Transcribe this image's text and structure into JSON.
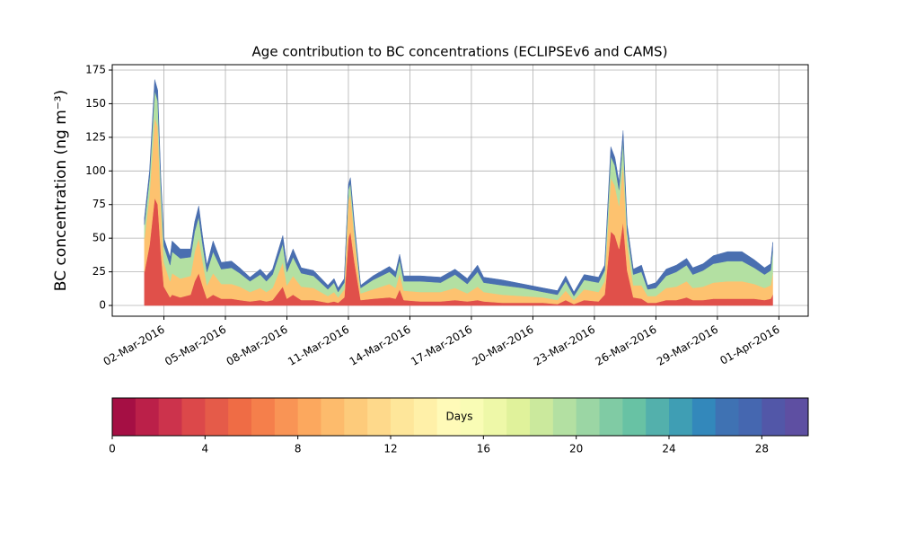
{
  "chart_data": {
    "type": "stacked-area",
    "title": "Age contribution to BC concentrations (ECLIPSEv6 and CAMS)",
    "y_label": "BC concentration (ng m⁻³)",
    "x": [
      1.05,
      1.3,
      1.55,
      1.7,
      1.85,
      2.0,
      2.3,
      2.4,
      2.8,
      3.3,
      3.5,
      3.7,
      3.9,
      4.1,
      4.4,
      4.8,
      5.3,
      5.7,
      6.2,
      6.7,
      7.0,
      7.3,
      7.8,
      8.0,
      8.3,
      8.7,
      9.3,
      10.0,
      10.3,
      10.5,
      10.8,
      11.0,
      11.1,
      11.3,
      11.6,
      12.2,
      13.0,
      13.3,
      13.5,
      13.7,
      14.5,
      15.5,
      16.2,
      16.8,
      17.3,
      17.6,
      18.5,
      19.5,
      20.5,
      21.2,
      21.6,
      22.0,
      22.5,
      23.2,
      23.5,
      23.8,
      24.0,
      24.2,
      24.4,
      24.6,
      24.9,
      25.3,
      25.6,
      26.0,
      26.5,
      27.0,
      27.5,
      27.8,
      28.3,
      28.8,
      29.5,
      30.2,
      30.8,
      31.3,
      31.6,
      31.7
    ],
    "series": [
      {
        "color": "#e0504a",
        "values": [
          25,
          45,
          80,
          75,
          40,
          14,
          6,
          8,
          6,
          8,
          18,
          24,
          14,
          5,
          8,
          5,
          5,
          4,
          3,
          4,
          3,
          4,
          14,
          5,
          8,
          4,
          4,
          2,
          3,
          2,
          6,
          50,
          55,
          32,
          4,
          5,
          6,
          5,
          12,
          4,
          3,
          3,
          4,
          3,
          4,
          3,
          2,
          2,
          2,
          1,
          4,
          1,
          4,
          3,
          8,
          55,
          52,
          42,
          62,
          26,
          6,
          5,
          2,
          2,
          4,
          4,
          6,
          4,
          4,
          5,
          5,
          5,
          5,
          4,
          5,
          8
        ]
      },
      {
        "color": "#fdc26f",
        "values": [
          25,
          38,
          60,
          58,
          35,
          18,
          12,
          16,
          14,
          14,
          22,
          26,
          18,
          10,
          16,
          11,
          11,
          10,
          7,
          9,
          7,
          9,
          18,
          10,
          14,
          10,
          9,
          5,
          7,
          4,
          6,
          28,
          28,
          18,
          5,
          7,
          10,
          8,
          12,
          7,
          7,
          7,
          9,
          6,
          10,
          7,
          6,
          5,
          4,
          3,
          7,
          3,
          8,
          7,
          10,
          40,
          37,
          32,
          44,
          20,
          9,
          10,
          5,
          5,
          9,
          10,
          12,
          9,
          10,
          12,
          13,
          13,
          11,
          9,
          10,
          16
        ]
      },
      {
        "color": "#b3e0a2",
        "values": [
          10,
          12,
          20,
          19,
          14,
          12,
          12,
          16,
          15,
          14,
          15,
          16,
          12,
          10,
          16,
          11,
          12,
          10,
          8,
          10,
          8,
          10,
          14,
          10,
          14,
          10,
          9,
          5,
          7,
          4,
          5,
          8,
          8,
          6,
          4,
          7,
          9,
          8,
          10,
          7,
          8,
          7,
          10,
          7,
          11,
          7,
          7,
          6,
          4,
          4,
          7,
          3,
          7,
          7,
          8,
          16,
          15,
          12,
          17,
          9,
          8,
          10,
          5,
          6,
          9,
          11,
          12,
          10,
          12,
          14,
          15,
          15,
          12,
          10,
          11,
          16
        ]
      },
      {
        "color": "#4a6fb0",
        "values": [
          5,
          5,
          8,
          8,
          6,
          6,
          6,
          8,
          7,
          6,
          7,
          8,
          6,
          5,
          8,
          5,
          5,
          4,
          3,
          4,
          4,
          4,
          6,
          5,
          6,
          4,
          4,
          3,
          3,
          3,
          3,
          4,
          4,
          4,
          2,
          3,
          4,
          4,
          4,
          4,
          4,
          4,
          4,
          4,
          5,
          4,
          4,
          3,
          3,
          3,
          4,
          3,
          4,
          4,
          4,
          7,
          6,
          6,
          7,
          5,
          4,
          5,
          3,
          4,
          5,
          5,
          5,
          5,
          5,
          6,
          7,
          7,
          6,
          5,
          5,
          7
        ]
      }
    ],
    "xlim": [
      -0.52,
      33.43
    ],
    "xticks": [
      {
        "value": 2,
        "label": "02-Mar-2016"
      },
      {
        "value": 5,
        "label": "05-Mar-2016"
      },
      {
        "value": 8,
        "label": "08-Mar-2016"
      },
      {
        "value": 11,
        "label": "11-Mar-2016"
      },
      {
        "value": 14,
        "label": "14-Mar-2016"
      },
      {
        "value": 17,
        "label": "17-Mar-2016"
      },
      {
        "value": 20,
        "label": "20-Mar-2016"
      },
      {
        "value": 23,
        "label": "23-Mar-2016"
      },
      {
        "value": 26,
        "label": "26-Mar-2016"
      },
      {
        "value": 29,
        "label": "29-Mar-2016"
      },
      {
        "value": 32,
        "label": "01-Apr-2016"
      }
    ],
    "ylim": [
      -8,
      179
    ],
    "yticks": [
      0,
      25,
      50,
      75,
      100,
      125,
      150,
      175
    ],
    "grid": true,
    "colorbar": {
      "label": "Days",
      "lim": [
        0,
        30
      ],
      "ticks": [
        0,
        4,
        8,
        12,
        16,
        20,
        24,
        28
      ],
      "colors": [
        "#a50f44",
        "#bb2049",
        "#cc334c",
        "#dc484a",
        "#e55b49",
        "#ef6c45",
        "#f57f4b",
        "#f99455",
        "#fca85e",
        "#fdbb6c",
        "#fdcb7b",
        "#fed98b",
        "#fee69a",
        "#fff0a8",
        "#fffab8",
        "#f9fcb5",
        "#eef8a8",
        "#e0f29b",
        "#cbe99d",
        "#b3e0a2",
        "#9bd6a4",
        "#80cba4",
        "#68c2a4",
        "#53b0ac",
        "#3f9eb4",
        "#3388bb",
        "#3f72b3",
        "#4567b0",
        "#5257a8",
        "#5e4fa2"
      ]
    }
  }
}
